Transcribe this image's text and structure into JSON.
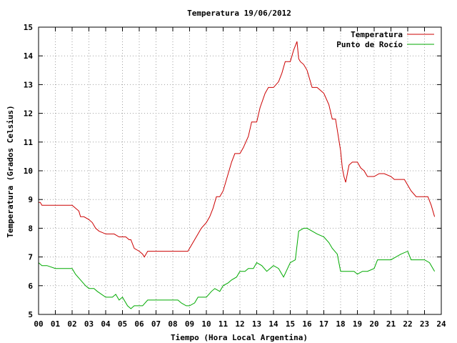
{
  "chart_data": {
    "type": "line",
    "title": "Temperatura 19/06/2012",
    "xlabel": "Tiempo (Hora Local Argentina)",
    "ylabel": "Temperatura (Grados Celsius)",
    "xlim": [
      0,
      24
    ],
    "ylim": [
      5,
      15
    ],
    "x_ticks": [
      "00",
      "01",
      "02",
      "03",
      "04",
      "05",
      "06",
      "07",
      "08",
      "09",
      "10",
      "11",
      "12",
      "13",
      "14",
      "15",
      "16",
      "17",
      "18",
      "19",
      "20",
      "21",
      "22",
      "23",
      "24"
    ],
    "y_ticks": [
      5,
      6,
      7,
      8,
      9,
      10,
      11,
      12,
      13,
      14,
      15
    ],
    "grid": true,
    "legend_position": "top-right",
    "series": [
      {
        "name": "Temperatura",
        "color": "#cc0000",
        "x": [
          0,
          0.1,
          0.2,
          0.5,
          1.0,
          1.5,
          2.0,
          2.4,
          2.5,
          2.7,
          3.0,
          3.2,
          3.4,
          3.6,
          4.0,
          4.4,
          4.5,
          4.8,
          5.0,
          5.2,
          5.4,
          5.5,
          5.7,
          6.0,
          6.2,
          6.3,
          6.5,
          7.0,
          7.5,
          8.0,
          8.2,
          8.5,
          8.9,
          9.0,
          9.2,
          9.5,
          9.7,
          10.0,
          10.2,
          10.4,
          10.6,
          10.8,
          11.0,
          11.2,
          11.5,
          11.7,
          12.0,
          12.2,
          12.5,
          12.7,
          13.0,
          13.2,
          13.5,
          13.7,
          14.0,
          14.3,
          14.5,
          14.7,
          15.0,
          15.2,
          15.4,
          15.5,
          15.6,
          15.8,
          16.0,
          16.3,
          16.6,
          17.0,
          17.3,
          17.5,
          17.7,
          18.0,
          18.1,
          18.2,
          18.3,
          18.5,
          18.7,
          19.0,
          19.2,
          19.4,
          19.6,
          20.0,
          20.3,
          20.6,
          21.0,
          21.2,
          21.5,
          21.8,
          22.0,
          22.2,
          22.5,
          22.8,
          23.0,
          23.2,
          23.4,
          23.6
        ],
        "values": [
          8.9,
          8.9,
          8.8,
          8.8,
          8.8,
          8.8,
          8.8,
          8.6,
          8.4,
          8.4,
          8.3,
          8.2,
          8.0,
          7.9,
          7.8,
          7.8,
          7.8,
          7.7,
          7.7,
          7.7,
          7.6,
          7.6,
          7.3,
          7.2,
          7.1,
          7.0,
          7.2,
          7.2,
          7.2,
          7.2,
          7.2,
          7.2,
          7.2,
          7.3,
          7.5,
          7.8,
          8.0,
          8.2,
          8.4,
          8.7,
          9.1,
          9.1,
          9.3,
          9.7,
          10.3,
          10.6,
          10.6,
          10.8,
          11.2,
          11.7,
          11.7,
          12.2,
          12.7,
          12.9,
          12.9,
          13.1,
          13.4,
          13.8,
          13.8,
          14.2,
          14.5,
          13.9,
          13.8,
          13.7,
          13.5,
          12.9,
          12.9,
          12.7,
          12.3,
          11.8,
          11.8,
          10.7,
          10.1,
          9.8,
          9.6,
          10.2,
          10.3,
          10.3,
          10.1,
          10.0,
          9.8,
          9.8,
          9.9,
          9.9,
          9.8,
          9.7,
          9.7,
          9.7,
          9.5,
          9.3,
          9.1,
          9.1,
          9.1,
          9.1,
          8.8,
          8.4
        ]
      },
      {
        "name": "Punto de Rocío",
        "color": "#00aa00",
        "x": [
          0,
          0.2,
          0.5,
          1.0,
          1.5,
          2.0,
          2.2,
          2.5,
          2.8,
          3.0,
          3.3,
          3.5,
          4.0,
          4.4,
          4.6,
          4.8,
          5.0,
          5.3,
          5.5,
          5.7,
          6.0,
          6.2,
          6.5,
          6.8,
          7.0,
          7.5,
          8.0,
          8.3,
          8.5,
          8.8,
          9.0,
          9.3,
          9.5,
          9.8,
          10.0,
          10.3,
          10.5,
          10.8,
          11.0,
          11.3,
          11.5,
          11.8,
          12.0,
          12.3,
          12.5,
          12.8,
          13.0,
          13.3,
          13.6,
          14.0,
          14.3,
          14.6,
          15.0,
          15.3,
          15.5,
          15.8,
          16.0,
          16.3,
          16.6,
          17.0,
          17.3,
          17.5,
          17.8,
          18.0,
          18.2,
          18.5,
          18.8,
          19.0,
          19.3,
          19.6,
          20.0,
          20.2,
          20.5,
          21.0,
          21.3,
          21.6,
          22.0,
          22.2,
          22.5,
          22.8,
          23.0,
          23.3,
          23.6
        ],
        "values": [
          6.8,
          6.7,
          6.7,
          6.6,
          6.6,
          6.6,
          6.4,
          6.2,
          6.0,
          5.9,
          5.9,
          5.8,
          5.6,
          5.6,
          5.7,
          5.5,
          5.6,
          5.3,
          5.2,
          5.3,
          5.3,
          5.3,
          5.5,
          5.5,
          5.5,
          5.5,
          5.5,
          5.5,
          5.4,
          5.3,
          5.3,
          5.4,
          5.6,
          5.6,
          5.6,
          5.8,
          5.9,
          5.8,
          6.0,
          6.1,
          6.2,
          6.3,
          6.5,
          6.5,
          6.6,
          6.6,
          6.8,
          6.7,
          6.5,
          6.7,
          6.6,
          6.3,
          6.8,
          6.9,
          7.9,
          8.0,
          8.0,
          7.9,
          7.8,
          7.7,
          7.5,
          7.3,
          7.1,
          6.5,
          6.5,
          6.5,
          6.5,
          6.4,
          6.5,
          6.5,
          6.6,
          6.9,
          6.9,
          6.9,
          7.0,
          7.1,
          7.2,
          6.9,
          6.9,
          6.9,
          6.9,
          6.8,
          6.5
        ]
      }
    ]
  }
}
